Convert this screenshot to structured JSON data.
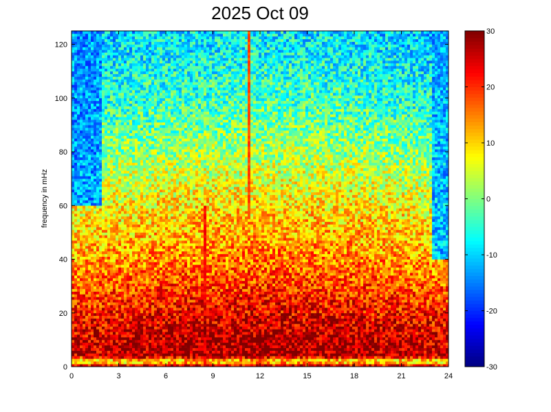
{
  "chart_data": {
    "type": "heatmap",
    "title": "2025 Oct 09",
    "xlabel": "",
    "ylabel": "frequency in mHz",
    "xlim": [
      0,
      24
    ],
    "ylim": [
      0,
      125
    ],
    "x_ticks": [
      0,
      3,
      6,
      9,
      12,
      15,
      18,
      21,
      24
    ],
    "y_ticks": [
      0,
      20,
      40,
      60,
      80,
      100,
      120
    ],
    "colorbar": {
      "range": [
        -30,
        30
      ],
      "ticks": [
        -30,
        -20,
        -10,
        0,
        10,
        20,
        30
      ],
      "colormap": "jet"
    },
    "grid": false,
    "value_profile_by_frequency": [
      {
        "f": 0,
        "v": 28
      },
      {
        "f": 2,
        "v": 6
      },
      {
        "f": 4,
        "v": 27
      },
      {
        "f": 10,
        "v": 26
      },
      {
        "f": 20,
        "v": 22
      },
      {
        "f": 30,
        "v": 18
      },
      {
        "f": 40,
        "v": 14
      },
      {
        "f": 60,
        "v": 8
      },
      {
        "f": 80,
        "v": 1
      },
      {
        "f": 100,
        "v": -5
      },
      {
        "f": 125,
        "v": -10
      }
    ],
    "features": [
      {
        "type": "vertical_streak",
        "x": 11.3,
        "f_range": [
          55,
          125
        ],
        "v": 20
      },
      {
        "type": "vertical_streak",
        "x": 8.5,
        "f_range": [
          0,
          60
        ],
        "v": 24
      },
      {
        "type": "low_band",
        "x_range": [
          0,
          2
        ],
        "f_range": [
          60,
          125
        ],
        "v": -20
      },
      {
        "type": "low_band",
        "x_range": [
          23,
          24
        ],
        "f_range": [
          40,
          125
        ],
        "v": -18
      }
    ]
  }
}
